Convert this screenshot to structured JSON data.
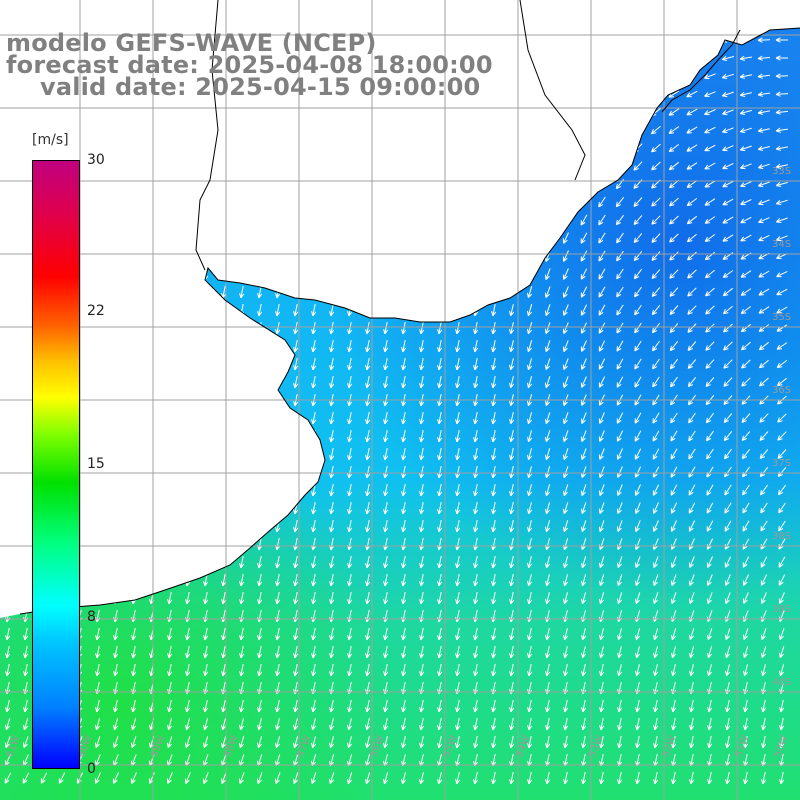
{
  "title": {
    "line1": "modelo GEFS-WAVE (NCEP)",
    "line2": "forecast date: 2025-04-08 18:00:00",
    "line3": "valid date: 2025-04-15 09:00:00"
  },
  "colorbar": {
    "unit": "[m/s]",
    "ticks": [
      "30",
      "22",
      "15",
      "8",
      "0"
    ],
    "tick_values": [
      30,
      22,
      15,
      8,
      0
    ],
    "min": 0,
    "max": 30
  },
  "map": {
    "variable": "wind speed and direction",
    "units": "m/s",
    "lat_labels": [
      "33S",
      "34S",
      "35S",
      "36S",
      "37S",
      "38S",
      "39S",
      "40S"
    ],
    "lon_labels": [
      "61W",
      "60W",
      "59W",
      "58W",
      "57W",
      "56W",
      "55W",
      "54W",
      "53W",
      "52W",
      "51W",
      "50W"
    ],
    "colors": {
      "land": "#ffffff",
      "coast": "#000000",
      "grid": "#a0a0a0",
      "arrow": "#ffffff",
      "title": "#808080"
    }
  }
}
